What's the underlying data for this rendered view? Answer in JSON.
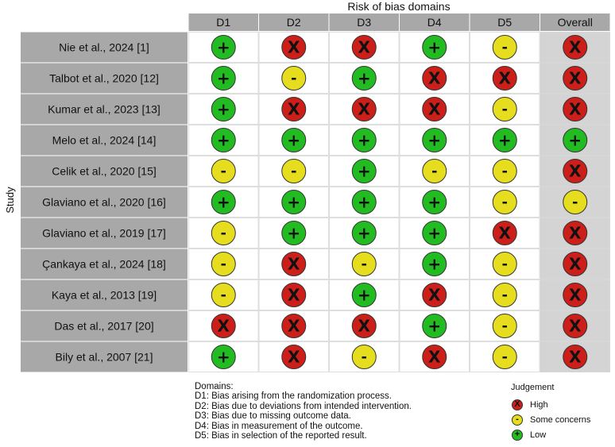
{
  "chart_data": {
    "type": "table",
    "title": "Risk of bias domains",
    "ylabel": "Study",
    "columns": [
      "D1",
      "D2",
      "D3",
      "D4",
      "D5",
      "Overall"
    ],
    "studies": [
      "Nie et al., 2024 [1]",
      "Talbot et al., 2020 [12]",
      "Kumar et al., 2023 [13]",
      "Melo et al., 2024 [14]",
      "Celik et al., 2020 [15]",
      "Glaviano et al., 2020 [16]",
      "Glaviano et al., 2019 [17]",
      "Çankaya et al., 2024 [18]",
      "Kaya et al., 2013 [19]",
      "Das et al., 2017 [20]",
      "Bily et al., 2007 [21]"
    ],
    "judgements": [
      [
        "low",
        "high",
        "high",
        "low",
        "some",
        "high"
      ],
      [
        "low",
        "some",
        "low",
        "high",
        "high",
        "high"
      ],
      [
        "low",
        "high",
        "high",
        "high",
        "some",
        "high"
      ],
      [
        "low",
        "low",
        "low",
        "low",
        "low",
        "low"
      ],
      [
        "some",
        "some",
        "low",
        "some",
        "some",
        "high"
      ],
      [
        "low",
        "low",
        "low",
        "low",
        "some",
        "some"
      ],
      [
        "some",
        "low",
        "low",
        "low",
        "high",
        "high"
      ],
      [
        "some",
        "high",
        "some",
        "low",
        "some",
        "high"
      ],
      [
        "some",
        "high",
        "low",
        "high",
        "some",
        "high"
      ],
      [
        "high",
        "high",
        "high",
        "low",
        "some",
        "high"
      ],
      [
        "low",
        "high",
        "some",
        "high",
        "some",
        "high"
      ]
    ],
    "symbols": {
      "high": "X",
      "some": "-",
      "low": "+"
    },
    "colors": {
      "high": "#cc1f1a",
      "some": "#e6dd1e",
      "low": "#22bb22",
      "grid_cell": "#ffffff",
      "overall_cell": "#d4d4d4",
      "study_cell": "#a8a8a8",
      "header_cell": "#a8a8a8"
    }
  },
  "domains_legend": {
    "title": "Domains:",
    "items": [
      "D1: Bias arising from the randomization process.",
      "D2: Bias due to deviations from intended intervention.",
      "D3: Bias due to missing outcome data.",
      "D4: Bias in measurement of the outcome.",
      "D5: Bias in selection of the reported result."
    ]
  },
  "judgement_legend": {
    "title": "Judgement",
    "items": [
      {
        "key": "high",
        "symbol": "X",
        "label": "High"
      },
      {
        "key": "some",
        "symbol": "-",
        "label": "Some concerns"
      },
      {
        "key": "low",
        "symbol": "+",
        "label": "Low"
      }
    ]
  }
}
